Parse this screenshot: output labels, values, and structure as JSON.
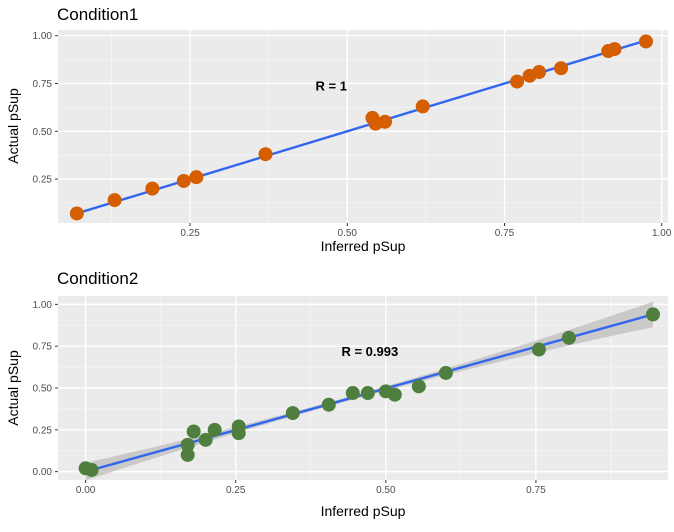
{
  "chart_data": [
    {
      "type": "scatter",
      "title": "Condition1",
      "xlabel": "Inferred pSup",
      "ylabel": "Actual pSup",
      "annotation": {
        "text": "R = 1",
        "x": 0.5,
        "y": 0.74
      },
      "xlim": [
        0.04,
        1.01
      ],
      "ylim": [
        0.02,
        1.03
      ],
      "xticks": [
        0.25,
        0.5,
        0.75,
        1.0
      ],
      "xtick_labels": [
        "0.25",
        "0.50",
        "0.75",
        "1.00"
      ],
      "yticks": [
        0.25,
        0.5,
        0.75,
        1.0
      ],
      "ytick_labels": [
        "0.25",
        "0.50",
        "0.75",
        "1.00"
      ],
      "point_color": "#d55e00",
      "line_color": "#3366ee",
      "grid": true,
      "points": {
        "x": [
          0.07,
          0.13,
          0.19,
          0.24,
          0.26,
          0.37,
          0.54,
          0.545,
          0.56,
          0.62,
          0.77,
          0.79,
          0.805,
          0.84,
          0.915,
          0.925,
          0.975
        ],
        "y": [
          0.07,
          0.14,
          0.2,
          0.24,
          0.26,
          0.38,
          0.57,
          0.54,
          0.55,
          0.63,
          0.76,
          0.79,
          0.81,
          0.83,
          0.92,
          0.93,
          0.97
        ]
      },
      "fit": {
        "x": [
          0.07,
          0.975
        ],
        "y": [
          0.07,
          0.975
        ],
        "band": false
      }
    },
    {
      "type": "scatter",
      "title": "Condition2",
      "xlabel": "Inferred pSup",
      "ylabel": "Actual pSup",
      "annotation": {
        "text": "R = 0.993",
        "x": 0.5,
        "y": 0.72
      },
      "xlim": [
        -0.046,
        0.97
      ],
      "ylim": [
        -0.05,
        1.05
      ],
      "xticks": [
        0,
        0.25,
        0.5,
        0.75
      ],
      "xtick_labels": [
        "0.00",
        "0.25",
        "0.50",
        "0.75"
      ],
      "yticks": [
        0,
        0.25,
        0.5,
        0.75,
        1.0
      ],
      "ytick_labels": [
        "0.00",
        "0.25",
        "0.50",
        "0.75",
        "1.00"
      ],
      "point_color": "#4f7f3f",
      "line_color": "#3366ee",
      "grid": true,
      "points": {
        "x": [
          0.0,
          0.01,
          0.17,
          0.17,
          0.18,
          0.2,
          0.215,
          0.255,
          0.255,
          0.345,
          0.405,
          0.445,
          0.47,
          0.5,
          0.515,
          0.555,
          0.6,
          0.755,
          0.805,
          0.945
        ],
        "y": [
          0.02,
          0.01,
          0.16,
          0.1,
          0.24,
          0.19,
          0.25,
          0.27,
          0.23,
          0.35,
          0.4,
          0.47,
          0.47,
          0.48,
          0.46,
          0.51,
          0.59,
          0.73,
          0.8,
          0.94
        ]
      },
      "fit": {
        "x": [
          0.0,
          0.945
        ],
        "y": [
          0.0,
          0.94
        ],
        "band": true
      }
    }
  ]
}
